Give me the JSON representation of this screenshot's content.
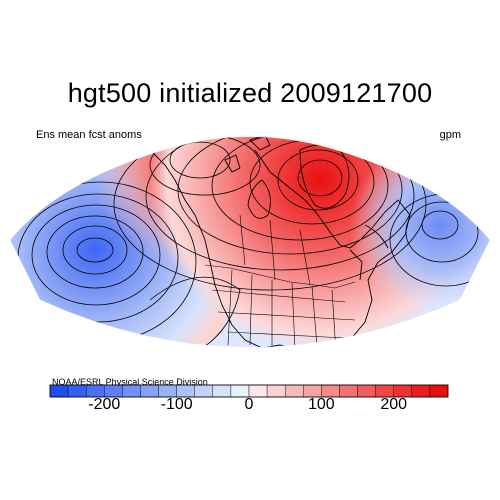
{
  "header": {
    "title": "hgt500 initialized 2009121700",
    "left_label": "Ens mean fcst anoms",
    "right_label": "gpm"
  },
  "footer": {
    "credit": "NOAA/ESRL Physical Science Division"
  },
  "colorbar": {
    "tick_labels": [
      "-200",
      "-100",
      "0",
      "100",
      "200"
    ],
    "tick_values": [
      -200,
      -100,
      0,
      100,
      200
    ],
    "range": [
      -275,
      275
    ],
    "bins": [
      -275,
      -250,
      -225,
      -200,
      -175,
      -150,
      -125,
      -100,
      -75,
      -50,
      -25,
      0,
      25,
      50,
      75,
      100,
      125,
      150,
      175,
      200,
      225,
      250,
      275
    ],
    "colors": [
      "#1d4ff0",
      "#3460f2",
      "#4a70f3",
      "#5f80f4",
      "#7391f5",
      "#87a1f6",
      "#9bb1f7",
      "#afc1f9",
      "#c3d2fa",
      "#d6e2fc",
      "#e9f0fe",
      "#ffe8e8",
      "#fdd2d2",
      "#fbbaba",
      "#f9a2a2",
      "#f78a8a",
      "#f57272",
      "#f35c5c",
      "#f14646",
      "#ef3131",
      "#ed1d1d",
      "#e80f0f"
    ]
  },
  "map": {
    "projection": "polar sector, North Pacific & North America",
    "anomaly_centers": [
      {
        "kind": "negative",
        "lon": -170,
        "lat": 38,
        "value": -230
      },
      {
        "kind": "positive",
        "lon": -75,
        "lat": 68,
        "value": 260
      },
      {
        "kind": "positive",
        "lon": -140,
        "lat": 65,
        "value": 180
      },
      {
        "kind": "negative",
        "lon": -35,
        "lat": 45,
        "value": -160
      }
    ],
    "colors": {
      "negative_core": "#4a70f3",
      "positive_core": "#ef3131",
      "contour": "#000000",
      "land_outline": "#000000"
    }
  }
}
